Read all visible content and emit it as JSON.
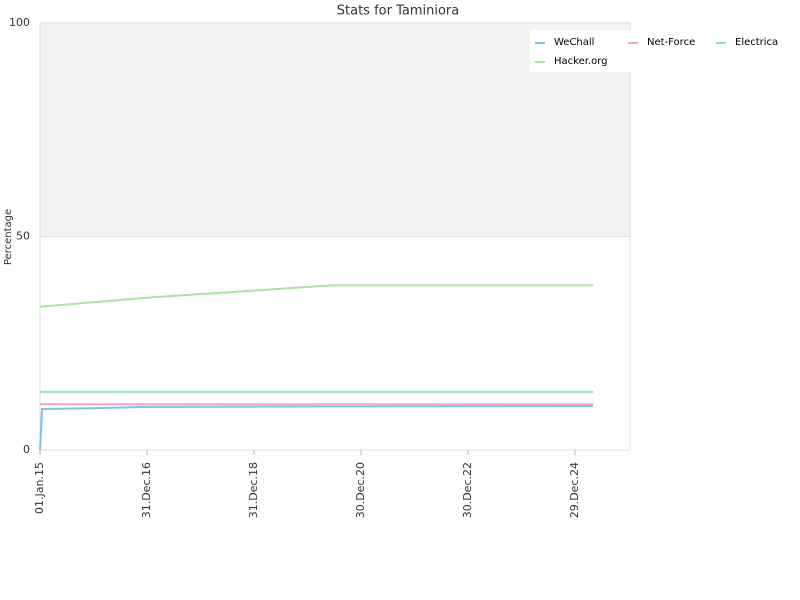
{
  "chart_data": {
    "type": "line",
    "title": "Stats for Taminiora",
    "y_label": "Percentage",
    "x": [
      2015.0,
      2015.04,
      2016.0,
      2017.0,
      2020.5,
      2025.34
    ],
    "xlim": [
      2015.0,
      2026.03
    ],
    "xticks": [
      {
        "value": 2015.0,
        "label": "01.Jan.15"
      },
      {
        "value": 2017.0,
        "label": "31.Dec.16"
      },
      {
        "value": 2019.0,
        "label": "31.Dec.18"
      },
      {
        "value": 2021.0,
        "label": "30.Dec.20"
      },
      {
        "value": 2023.0,
        "label": "30.Dec.22"
      },
      {
        "value": 2025.0,
        "label": "29.Dec.24"
      }
    ],
    "ylim": [
      0,
      100
    ],
    "yticks": [
      0,
      50,
      100
    ],
    "legend": "top-right",
    "series": [
      {
        "name": "WeChall",
        "color": "#7ec0ee",
        "values": [
          0,
          9.6,
          9.8,
          10.1,
          10.2,
          10.3
        ]
      },
      {
        "name": "Net-Force",
        "color": "#f4a6c0",
        "values": [
          10.7,
          10.7,
          10.7,
          10.7,
          10.7,
          10.7
        ]
      },
      {
        "name": "Electrica",
        "color": "#7ee8c8",
        "values": [
          13.6,
          13.6,
          13.6,
          13.6,
          13.6,
          13.6
        ]
      },
      {
        "name": "Hacker.org",
        "color": "#a8e6a0",
        "values": [
          33.5,
          33.6,
          34.6,
          35.7,
          38.6,
          38.6
        ]
      }
    ]
  }
}
